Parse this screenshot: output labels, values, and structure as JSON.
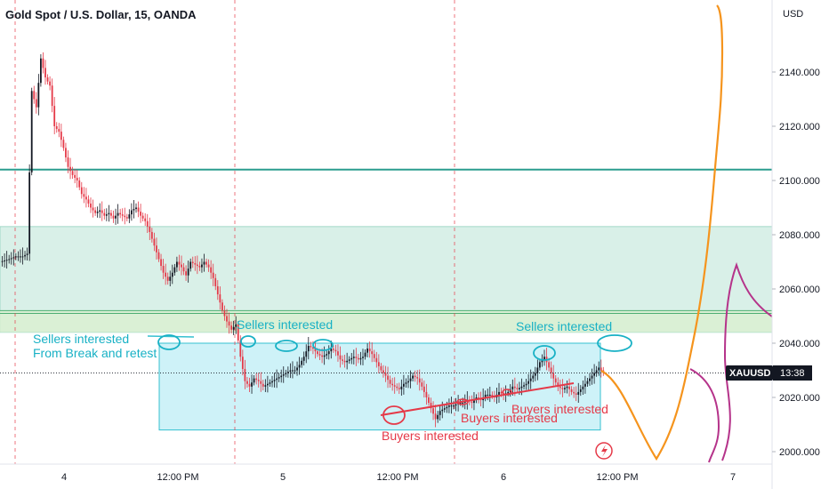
{
  "header": {
    "title": "Gold Spot / U.S. Dollar, 15, OANDA",
    "currency": "USD"
  },
  "symbol_badge": {
    "symbol": "XAUUSD",
    "countdown": "13:38"
  },
  "colors": {
    "up": "#131722",
    "down": "#e53948",
    "resistance": "#2a9d8f",
    "zone": "#b9e3d6",
    "box": "#bdeef5",
    "seller_text": "#18b1c5",
    "buyer_text": "#e53948",
    "projection": "#f5941d",
    "magenta": "#b5338a"
  },
  "chart_data": {
    "type": "candlestick",
    "title": "Gold Spot / U.S. Dollar, 15, OANDA",
    "ylim": [
      1990,
      2155
    ],
    "y_ticks": [
      2000,
      2020,
      2040,
      2060,
      2080,
      2100,
      2120,
      2140
    ],
    "y_tick_labels": [
      "2000.000",
      "2020.000",
      "2040.000",
      "2060.000",
      "2080.000",
      "2100.000",
      "2120.000",
      "2140.000"
    ],
    "x_tick_labels": [
      "4",
      "12:00 PM",
      "5",
      "12:00 PM",
      "6",
      "12:00 PM",
      "7"
    ],
    "current_price": 2029.0,
    "price_path": [
      [
        0,
        2070
      ],
      [
        4,
        2071
      ],
      [
        7,
        2072
      ],
      [
        10,
        2072
      ],
      [
        12,
        2073
      ],
      [
        14,
        2133
      ],
      [
        16,
        2127
      ],
      [
        18,
        2145
      ],
      [
        20,
        2138
      ],
      [
        22,
        2135
      ],
      [
        24,
        2120
      ],
      [
        26,
        2118
      ],
      [
        28,
        2112
      ],
      [
        30,
        2105
      ],
      [
        32,
        2102
      ],
      [
        34,
        2100
      ],
      [
        36,
        2095
      ],
      [
        38,
        2093
      ],
      [
        40,
        2090
      ],
      [
        42,
        2088
      ],
      [
        44,
        2089
      ],
      [
        46,
        2087
      ],
      [
        48,
        2088
      ],
      [
        50,
        2086
      ],
      [
        52,
        2088
      ],
      [
        54,
        2087
      ],
      [
        56,
        2086
      ],
      [
        58,
        2089
      ],
      [
        60,
        2090
      ],
      [
        62,
        2087
      ],
      [
        64,
        2085
      ],
      [
        66,
        2081
      ],
      [
        68,
        2076
      ],
      [
        70,
        2071
      ],
      [
        72,
        2066
      ],
      [
        74,
        2063
      ],
      [
        76,
        2066
      ],
      [
        78,
        2070
      ],
      [
        80,
        2068
      ],
      [
        82,
        2065
      ],
      [
        84,
        2070
      ],
      [
        86,
        2069
      ],
      [
        88,
        2068
      ],
      [
        90,
        2070
      ],
      [
        92,
        2068
      ],
      [
        94,
        2064
      ],
      [
        96,
        2058
      ],
      [
        98,
        2052
      ],
      [
        100,
        2048
      ],
      [
        102,
        2045
      ],
      [
        104,
        2047
      ],
      [
        106,
        2035
      ],
      [
        108,
        2026
      ],
      [
        110,
        2024
      ],
      [
        112,
        2027
      ],
      [
        114,
        2026
      ],
      [
        116,
        2024
      ],
      [
        118,
        2025
      ],
      [
        120,
        2026
      ],
      [
        122,
        2027
      ],
      [
        124,
        2028
      ],
      [
        126,
        2029
      ],
      [
        128,
        2030
      ],
      [
        130,
        2030
      ],
      [
        132,
        2032
      ],
      [
        134,
        2035
      ],
      [
        136,
        2039
      ],
      [
        138,
        2038
      ],
      [
        140,
        2036
      ],
      [
        142,
        2035
      ],
      [
        144,
        2036
      ],
      [
        146,
        2038
      ],
      [
        148,
        2037
      ],
      [
        150,
        2034
      ],
      [
        152,
        2033
      ],
      [
        154,
        2034
      ],
      [
        156,
        2035
      ],
      [
        158,
        2034
      ],
      [
        160,
        2035
      ],
      [
        162,
        2038
      ],
      [
        164,
        2036
      ],
      [
        166,
        2033
      ],
      [
        168,
        2030
      ],
      [
        170,
        2028
      ],
      [
        172,
        2025
      ],
      [
        174,
        2024
      ],
      [
        176,
        2023
      ],
      [
        178,
        2025
      ],
      [
        180,
        2026
      ],
      [
        182,
        2028
      ],
      [
        184,
        2027
      ],
      [
        186,
        2024
      ],
      [
        188,
        2020
      ],
      [
        190,
        2016
      ],
      [
        192,
        2012
      ],
      [
        194,
        2015
      ],
      [
        196,
        2016
      ],
      [
        198,
        2017
      ],
      [
        200,
        2017
      ],
      [
        202,
        2018
      ],
      [
        204,
        2018
      ],
      [
        206,
        2019
      ],
      [
        208,
        2018
      ],
      [
        210,
        2020
      ],
      [
        212,
        2019
      ],
      [
        214,
        2021
      ],
      [
        216,
        2021
      ],
      [
        218,
        2020
      ],
      [
        220,
        2022
      ],
      [
        222,
        2021
      ],
      [
        224,
        2022
      ],
      [
        226,
        2024
      ],
      [
        228,
        2023
      ],
      [
        230,
        2024
      ],
      [
        232,
        2025
      ],
      [
        234,
        2027
      ],
      [
        236,
        2029
      ],
      [
        238,
        2033
      ],
      [
        240,
        2035
      ],
      [
        242,
        2031
      ],
      [
        244,
        2027
      ],
      [
        246,
        2024
      ],
      [
        248,
        2023
      ],
      [
        250,
        2024
      ],
      [
        252,
        2022
      ],
      [
        254,
        2021
      ],
      [
        256,
        2023
      ],
      [
        258,
        2025
      ],
      [
        260,
        2027
      ],
      [
        262,
        2029
      ],
      [
        264,
        2031
      ],
      [
        266,
        2029
      ]
    ],
    "horizontal_lines": [
      {
        "name": "resistance",
        "value": 2104
      },
      {
        "name": "zone-edge",
        "value": 2052
      },
      {
        "name": "zone-edge",
        "value": 2051
      }
    ],
    "zone": [
      2044,
      2083
    ],
    "range_box": [
      2008,
      2040
    ],
    "projection": [
      [
        2029,
        0
      ],
      [
        2020,
        0.18
      ],
      [
        2008,
        0.38
      ],
      [
        1997,
        0.6
      ],
      [
        2012,
        0.8
      ],
      [
        2060,
        0.95
      ],
      [
        2080,
        1.05
      ],
      [
        2112,
        1.25
      ],
      [
        2120,
        1.35
      ],
      [
        2134,
        1.42
      ],
      [
        2153,
        1.5
      ]
    ],
    "annotations": [
      {
        "text": "Sellers interested",
        "kind": "sell"
      },
      {
        "text": "From Break and retest",
        "kind": "sell"
      },
      {
        "text": "Sellers interested",
        "kind": "sell"
      },
      {
        "text": "Sellers interested",
        "kind": "sell"
      },
      {
        "text": "Buyers interested",
        "kind": "buy"
      },
      {
        "text": "Buyers interested",
        "kind": "buy"
      },
      {
        "text": "Buyers interested",
        "kind": "buy"
      }
    ]
  }
}
